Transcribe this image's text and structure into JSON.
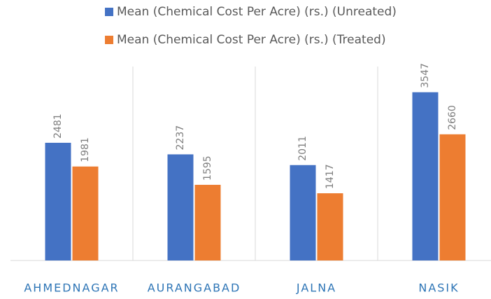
{
  "chart_data": {
    "type": "bar",
    "categories": [
      "AHMEDNAGAR",
      "AURANGABAD",
      "JALNA",
      "NASIK"
    ],
    "series": [
      {
        "name": "Mean (Chemical Cost Per Acre) (rs.) (Unreated)",
        "color": "#4472c4",
        "values": [
          2481,
          2237,
          2011,
          3547
        ]
      },
      {
        "name": "Mean (Chemical Cost Per Acre) (rs.) (Treated)",
        "color": "#ed7d31",
        "values": [
          1981,
          1595,
          1417,
          2660
        ]
      }
    ],
    "ylim": [
      0,
      4000
    ],
    "legend": "top"
  }
}
